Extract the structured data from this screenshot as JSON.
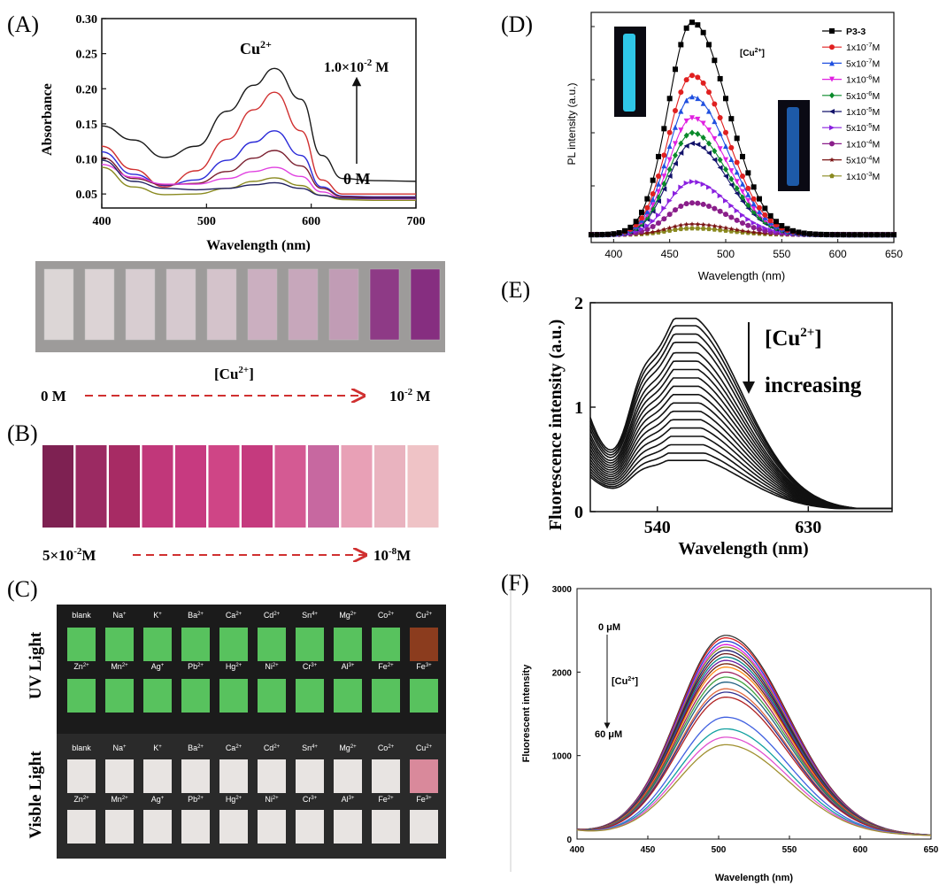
{
  "panels": {
    "A": {
      "letter": "(A)",
      "label_cu": "Cu",
      "label_cu_sup": "2+",
      "conc_top": "1.0×10",
      "conc_top_exp": "-2",
      "conc_top_unit": " M",
      "conc_zero": "0 M",
      "strip_colors": [
        "#dcd6d6",
        "#dcd3d5",
        "#d8cdd1",
        "#d6c9cf",
        "#d4c3cb",
        "#cbafc0",
        "#c7a7bb",
        "#c19cb5",
        "#8e3a86",
        "#862e80"
      ],
      "scale_label": "[Cu",
      "scale_label_sup": "2+",
      "scale_left": "0 M",
      "scale_right": "10",
      "scale_right_exp": "-2",
      "scale_right_unit": " M"
    },
    "B": {
      "letter": "(B)",
      "strip_colors": [
        "#7e2152",
        "#9b2a62",
        "#a72b64",
        "#c1377a",
        "#c73a80",
        "#cf4586",
        "#c53a7e",
        "#d45a93",
        "#c768a0",
        "#e8a0b6",
        "#e9b3bf",
        "#efc3c6"
      ],
      "scale_left": "5×10",
      "scale_left_exp": "-2",
      "scale_left_unit": "M",
      "scale_right": "10",
      "scale_right_exp": "-8",
      "scale_right_unit": "M"
    },
    "C": {
      "letter": "(C)",
      "uv_label": "UV Light",
      "vis_label": "Visble Light",
      "row1": [
        [
          "blank",
          ""
        ],
        [
          "Na",
          "+"
        ],
        [
          "K",
          "+"
        ],
        [
          "Ba",
          "2+"
        ],
        [
          "Ca",
          "2+"
        ],
        [
          "Cd",
          "2+"
        ],
        [
          "Sn",
          "4+"
        ],
        [
          "Mg",
          "2+"
        ],
        [
          "Co",
          "2+"
        ],
        [
          "Cu",
          "2+"
        ]
      ],
      "row2": [
        [
          "Zn",
          "2+"
        ],
        [
          "Mn",
          "2+"
        ],
        [
          "Ag",
          "+"
        ],
        [
          "Pb",
          "2+"
        ],
        [
          "Hg",
          "2+"
        ],
        [
          "Ni",
          "2+"
        ],
        [
          "Cr",
          "3+"
        ],
        [
          "Al",
          "3+"
        ],
        [
          "Fe",
          "2+"
        ],
        [
          "Fe",
          "3+"
        ]
      ],
      "uv_color": "#58c25e",
      "uv_cu_color": "#8b3c1e",
      "vis_color": "#e8e4e2",
      "vis_cu_color": "#d9899b"
    },
    "D": {
      "letter": "(D)",
      "conc_label": "[Cu",
      "conc_label_sup": "2+",
      "conc_label_end": "]"
    },
    "E": {
      "letter": "(E)",
      "annot1": "[Cu",
      "annot1_sup": "2+",
      "annot1_end": "]",
      "annot2": "increasing"
    },
    "F": {
      "letter": "(F)",
      "annot_top": "0 μM",
      "annot_mid": "[Cu",
      "annot_mid_sup": "2+",
      "annot_mid_end": "]",
      "annot_bot": "60 μM"
    }
  },
  "chart_data": [
    {
      "id": "A",
      "type": "line",
      "xlabel": "Wavelength (nm)",
      "ylabel": "Absorbance",
      "xlim": [
        400,
        700
      ],
      "ylim": [
        0.03,
        0.3
      ],
      "xticks": [
        400,
        500,
        600,
        700
      ],
      "yticks": [
        0.05,
        0.1,
        0.15,
        0.2,
        0.25,
        0.3
      ],
      "ytick_labels": [
        "0.05",
        "0.10",
        "0.15",
        "0.20",
        "0.25",
        "0.30"
      ],
      "series": [
        {
          "color": "#1a1a1a",
          "x": [
            400,
            430,
            460,
            490,
            520,
            545,
            565,
            590,
            610,
            630,
            660,
            700
          ],
          "y": [
            0.147,
            0.127,
            0.102,
            0.118,
            0.168,
            0.205,
            0.229,
            0.185,
            0.105,
            0.072,
            0.069,
            0.068
          ]
        },
        {
          "color": "#d03030",
          "x": [
            400,
            430,
            460,
            490,
            520,
            545,
            565,
            590,
            610,
            630,
            660,
            700
          ],
          "y": [
            0.118,
            0.085,
            0.06,
            0.083,
            0.128,
            0.17,
            0.195,
            0.14,
            0.07,
            0.05,
            0.05,
            0.05
          ]
        },
        {
          "color": "#2a2ad8",
          "x": [
            400,
            430,
            460,
            490,
            520,
            545,
            565,
            590,
            610,
            630,
            660,
            700
          ],
          "y": [
            0.11,
            0.078,
            0.062,
            0.07,
            0.098,
            0.124,
            0.14,
            0.105,
            0.06,
            0.047,
            0.046,
            0.046
          ]
        },
        {
          "color": "#7a1e2e",
          "x": [
            400,
            430,
            460,
            490,
            520,
            545,
            565,
            590,
            610,
            630,
            660,
            700
          ],
          "y": [
            0.102,
            0.072,
            0.063,
            0.065,
            0.082,
            0.101,
            0.112,
            0.09,
            0.058,
            0.046,
            0.045,
            0.045
          ]
        },
        {
          "color": "#e040e0",
          "x": [
            400,
            430,
            460,
            490,
            520,
            545,
            565,
            590,
            610,
            630,
            660,
            700
          ],
          "y": [
            0.092,
            0.074,
            0.064,
            0.064,
            0.072,
            0.082,
            0.088,
            0.075,
            0.053,
            0.044,
            0.043,
            0.043
          ]
        },
        {
          "color": "#8a8a20",
          "x": [
            400,
            430,
            460,
            490,
            520,
            545,
            565,
            590,
            610,
            630,
            660,
            700
          ],
          "y": [
            0.088,
            0.06,
            0.049,
            0.05,
            0.058,
            0.068,
            0.073,
            0.062,
            0.048,
            0.042,
            0.041,
            0.041
          ]
        },
        {
          "color": "#202060",
          "x": [
            400,
            430,
            460,
            490,
            520,
            545,
            565,
            590,
            610,
            630,
            660,
            700
          ],
          "y": [
            0.098,
            0.068,
            0.058,
            0.056,
            0.058,
            0.063,
            0.066,
            0.058,
            0.048,
            0.044,
            0.044,
            0.044
          ]
        }
      ]
    },
    {
      "id": "D",
      "type": "line",
      "xlabel": "Wavelength (nm)",
      "ylabel": "PL intensity (a.u.)",
      "xlim": [
        380,
        650
      ],
      "ylim": [
        0,
        1.05
      ],
      "xticks": [
        400,
        450,
        500,
        550,
        600,
        650
      ],
      "peak": 470,
      "width_left": 30,
      "width_right": 45,
      "baseline": 0.02,
      "series": [
        {
          "name": "P3-3",
          "color": "#000000",
          "marker": "square",
          "amp": 1.0
        },
        {
          "name": "1x10^-7M",
          "color": "#e02020",
          "marker": "circle",
          "amp": 0.75
        },
        {
          "name": "5x10^-7M",
          "color": "#2050e0",
          "marker": "triangle-up",
          "amp": 0.65
        },
        {
          "name": "1x10^-6M",
          "color": "#e020e0",
          "marker": "triangle-down",
          "amp": 0.55
        },
        {
          "name": "5x10^-6M",
          "color": "#0a8a2a",
          "marker": "diamond",
          "amp": 0.48
        },
        {
          "name": "1x10^-5M",
          "color": "#12126a",
          "marker": "triangle-left",
          "amp": 0.43
        },
        {
          "name": "5x10^-5M",
          "color": "#8a20e0",
          "marker": "triangle-right",
          "amp": 0.25
        },
        {
          "name": "1x10^-4M",
          "color": "#8a1e8a",
          "marker": "circle",
          "amp": 0.15
        },
        {
          "name": "5x10^-4M",
          "color": "#7a1414",
          "marker": "star",
          "amp": 0.05
        },
        {
          "name": "1x10^-3M",
          "color": "#8a8a20",
          "marker": "pentagon",
          "amp": 0.03
        }
      ]
    },
    {
      "id": "E",
      "type": "line",
      "xlabel": "Wavelength (nm)",
      "ylabel": "Fluorescence intensity (a.u.)",
      "xlim": [
        500,
        680
      ],
      "ylim": [
        0,
        2
      ],
      "xticks": [
        540,
        630
      ],
      "yticks": [
        0,
        1,
        2
      ],
      "ytick_labels": [
        "0",
        "1",
        "2"
      ],
      "peak": 556,
      "shoulder": 530,
      "amplitudes": [
        1.85,
        1.78,
        1.7,
        1.62,
        1.52,
        1.44,
        1.36,
        1.28,
        1.2,
        1.12,
        1.04,
        0.96,
        0.88,
        0.8,
        0.72,
        0.64,
        0.56,
        0.49
      ]
    },
    {
      "id": "F",
      "type": "line",
      "xlabel": "Wavelength (nm)",
      "ylabel": "Fluorescent intensity",
      "xlim": [
        400,
        650
      ],
      "ylim": [
        0,
        3000
      ],
      "xticks": [
        400,
        450,
        500,
        550,
        600,
        650
      ],
      "yticks": [
        0,
        1000,
        2000,
        3000
      ],
      "ytick_labels": [
        "0",
        "1000",
        "2000",
        "3000"
      ],
      "peak": 505,
      "amplitudes": [
        2400,
        2370,
        2330,
        2290,
        2260,
        2220,
        2180,
        2140,
        2100,
        2060,
        2020,
        1960,
        1900,
        1840,
        1760,
        1720,
        1660,
        1420,
        1280,
        1180,
        1090
      ],
      "colors": [
        "#333333",
        "#d82020",
        "#2040d0",
        "#e020e0",
        "#888820",
        "#1a1a70",
        "#6a1a1a",
        "#008080",
        "#6a1aa0",
        "#70200a",
        "#ff8c1a",
        "#a02060",
        "#40a040",
        "#206080",
        "#e06a40",
        "#303090",
        "#b02020",
        "#4060e0",
        "#10a0a0",
        "#e050d0",
        "#a09030"
      ]
    }
  ]
}
